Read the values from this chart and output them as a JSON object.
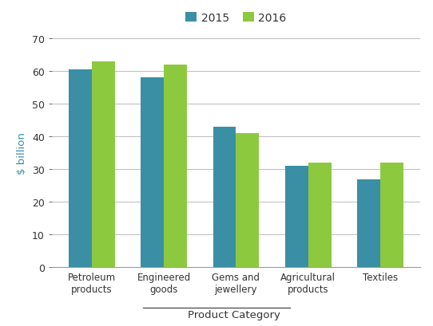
{
  "categories": [
    "Petroleum\nproducts",
    "Engineered\ngoods",
    "Gems and\njewellery",
    "Agricultural\nproducts",
    "Textiles"
  ],
  "values_2015": [
    60.5,
    58.0,
    43.0,
    31.0,
    27.0
  ],
  "values_2016": [
    63.0,
    62.0,
    41.0,
    32.0,
    32.0
  ],
  "bar_color_2015": "#3a8fa4",
  "bar_color_2016": "#8dc93e",
  "legend_labels": [
    "2015",
    "2016"
  ],
  "ylabel": "$ billion",
  "xlabel": "Product Category",
  "ylim": [
    0,
    70
  ],
  "yticks": [
    0,
    10,
    20,
    30,
    40,
    50,
    60,
    70
  ],
  "bar_width": 0.32,
  "grid_color": "#bbbbbb",
  "ylabel_color": "#3a8fa4",
  "xlabel_color": "#333333",
  "tick_label_color": "#333333",
  "spine_color": "#999999"
}
